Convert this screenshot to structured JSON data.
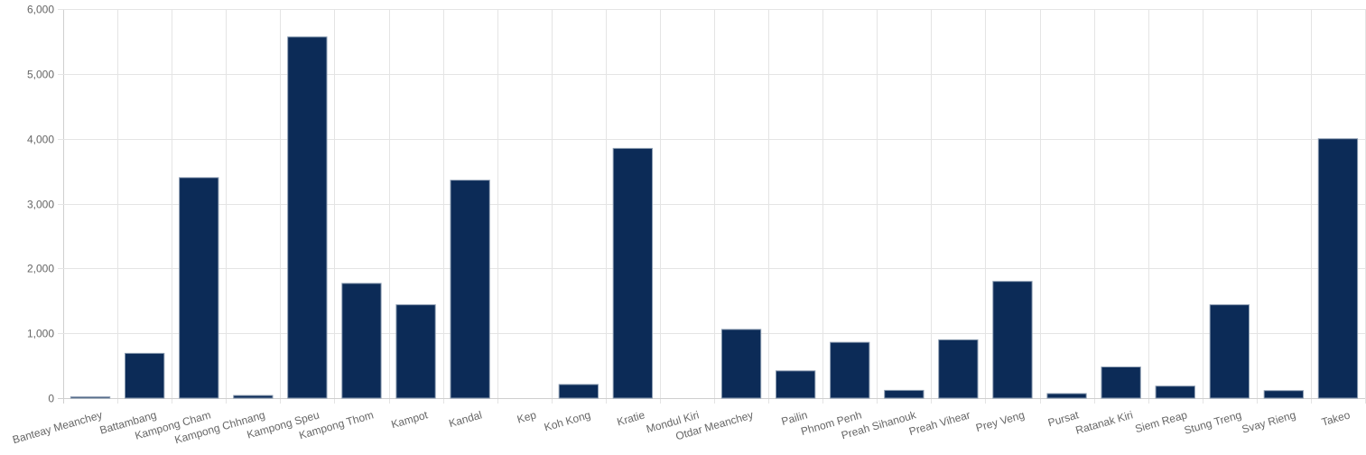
{
  "chart_data": {
    "type": "bar",
    "title": "",
    "xlabel": "",
    "ylabel": "",
    "ylim": [
      0,
      6000
    ],
    "yticks": [
      0,
      1000,
      2000,
      3000,
      4000,
      5000,
      6000
    ],
    "ytick_labels": [
      "0",
      "1,000",
      "2,000",
      "3,000",
      "4,000",
      "5,000",
      "6,000"
    ],
    "grid": true,
    "bar_color": "#0c2b57",
    "categories": [
      "Banteay Meanchey",
      "Battambang",
      "Kampong Cham",
      "Kampong Chhnang",
      "Kampong Speu",
      "Kampong Thom",
      "Kampot",
      "Kandal",
      "Kep",
      "Koh Kong",
      "Kratie",
      "Mondul Kiri",
      "Otdar Meanchey",
      "Pailin",
      "Phnom Penh",
      "Preah Sihanouk",
      "Preah Vihear",
      "Prey Veng",
      "Pursat",
      "Ratanak Kiri",
      "Siem Reap",
      "Stung Treng",
      "Svay Rieng",
      "Takeo"
    ],
    "values": [
      20,
      690,
      3400,
      40,
      5570,
      1770,
      1440,
      3360,
      0,
      210,
      3850,
      0,
      1060,
      420,
      860,
      120,
      900,
      1800,
      70,
      480,
      185,
      1440,
      115,
      4000
    ]
  }
}
